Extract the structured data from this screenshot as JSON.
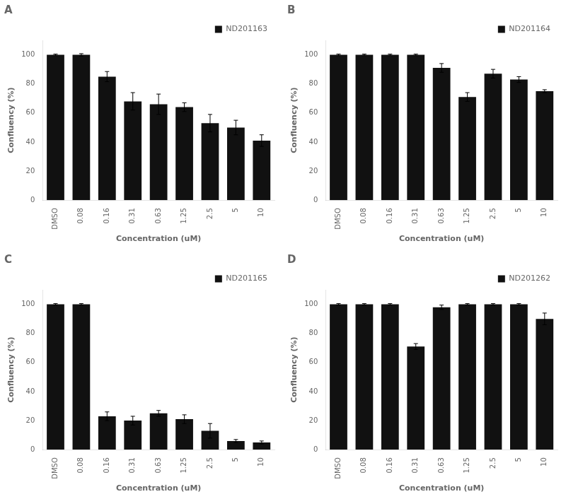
{
  "chart_data": [
    {
      "type": "bar",
      "title": "A",
      "categories": [
        "DMSO",
        "0.08",
        "0.16",
        "0.31",
        "0.63",
        "1.25",
        "2.5",
        "5",
        "10"
      ],
      "series": [
        {
          "name": "ND201163",
          "color": "#111111",
          "values": [
            100,
            100,
            85,
            68,
            66,
            64,
            53,
            50,
            41
          ],
          "errors": [
            0.5,
            0.8,
            3.5,
            6,
            7,
            3,
            6,
            5,
            4
          ]
        }
      ],
      "xlabel": "Concentration (uM)",
      "ylabel": "Confluency (%)",
      "ylim": [
        0,
        110
      ],
      "yticks": [
        0,
        20,
        40,
        60,
        80,
        100
      ],
      "grid": false,
      "legend": "upper right"
    },
    {
      "type": "bar",
      "title": "B",
      "categories": [
        "DMSO",
        "0.08",
        "0.16",
        "0.31",
        "0.63",
        "1.25",
        "2.5",
        "5",
        "10"
      ],
      "series": [
        {
          "name": "ND201164",
          "color": "#111111",
          "values": [
            100,
            100,
            100,
            100,
            91,
            71,
            87,
            83,
            75
          ],
          "errors": [
            0.5,
            0.5,
            0.5,
            0.5,
            3,
            3,
            3,
            2,
            1
          ]
        }
      ],
      "xlabel": "Concentration (uM)",
      "ylabel": "Confluency (%)",
      "ylim": [
        0,
        110
      ],
      "yticks": [
        0,
        20,
        40,
        60,
        80,
        100
      ],
      "grid": false,
      "legend": "upper right"
    },
    {
      "type": "bar",
      "title": "C",
      "categories": [
        "DMSO",
        "0.08",
        "0.16",
        "0.31",
        "0.63",
        "1.25",
        "2.5",
        "5",
        "10"
      ],
      "series": [
        {
          "name": "ND201165",
          "color": "#111111",
          "values": [
            100,
            100,
            23,
            20,
            25,
            21,
            13,
            6,
            5
          ],
          "errors": [
            0.5,
            0.5,
            3,
            3,
            2,
            3,
            5,
            1,
            1
          ]
        }
      ],
      "xlabel": "Concentration (uM)",
      "ylabel": "Confluency (%)",
      "ylim": [
        0,
        110
      ],
      "yticks": [
        0,
        20,
        40,
        60,
        80,
        100
      ],
      "grid": false,
      "legend": "upper right"
    },
    {
      "type": "bar",
      "title": "D",
      "categories": [
        "DMSO",
        "0.08",
        "0.16",
        "0.31",
        "0.63",
        "1.25",
        "2.5",
        "5",
        "10"
      ],
      "series": [
        {
          "name": "ND201262",
          "color": "#111111",
          "values": [
            100,
            100,
            100,
            71,
            98,
            100,
            100,
            100,
            90
          ],
          "errors": [
            0.5,
            0.5,
            0.5,
            2,
            1.5,
            0.5,
            0.5,
            0.5,
            4
          ]
        }
      ],
      "xlabel": "Concentration (uM)",
      "ylabel": "Confluency (%)",
      "ylim": [
        0,
        110
      ],
      "yticks": [
        0,
        20,
        40,
        60,
        80,
        100
      ],
      "grid": false,
      "legend": "upper right"
    }
  ]
}
